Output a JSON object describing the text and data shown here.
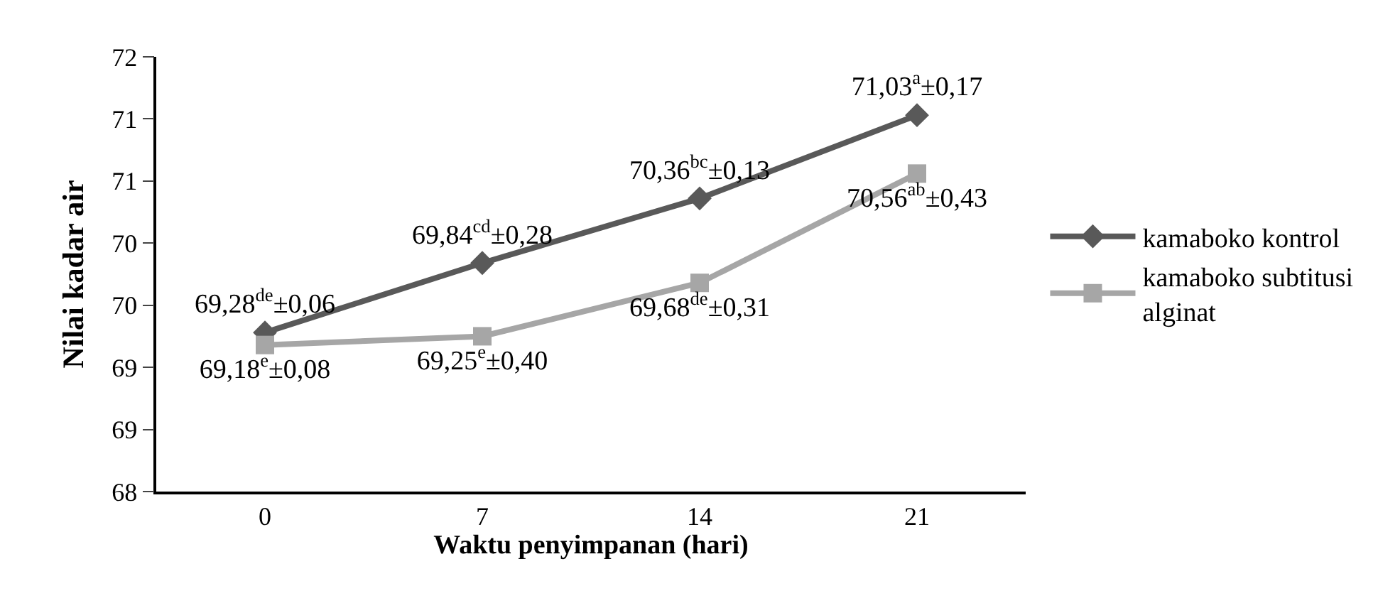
{
  "chart_data": {
    "type": "line",
    "xlabel": "Waktu penyimpanan (hari)",
    "ylabel": "Nilai kadar air",
    "categories": [
      "0",
      "7",
      "14",
      "21"
    ],
    "series": [
      {
        "name": "kamaboko kontrol",
        "color": "#595959",
        "marker": "diamond",
        "values": [
          69.28,
          69.84,
          70.36,
          71.03
        ],
        "value_labels": [
          "69,28$^{de}$±0,06",
          "69,84$^{cd}$±0,28",
          "70,36$^{bc}$±0,13",
          "71,03$^{a}$±0,17"
        ]
      },
      {
        "name": "kamaboko subtitusi alginat",
        "color": "#a6a6a6",
        "marker": "square",
        "values": [
          69.18,
          69.25,
          69.68,
          70.56
        ],
        "value_labels": [
          "69,18$^{e}$±0,08",
          "69,25$^{e}$±0,40",
          "69,68$^{de}$±0,31",
          "70,56$^{ab}$±0,43"
        ]
      }
    ],
    "ylim": [
      68,
      71.5
    ],
    "yticks": [
      68,
      {
        "value": 68.5,
        "label": "69"
      },
      69,
      {
        "value": 69.5,
        "label": "70"
      },
      70,
      {
        "value": 70.5,
        "label": "71"
      },
      71,
      {
        "value": 71.5,
        "label": "72"
      }
    ],
    "legend": "right",
    "line_style": "solid"
  }
}
